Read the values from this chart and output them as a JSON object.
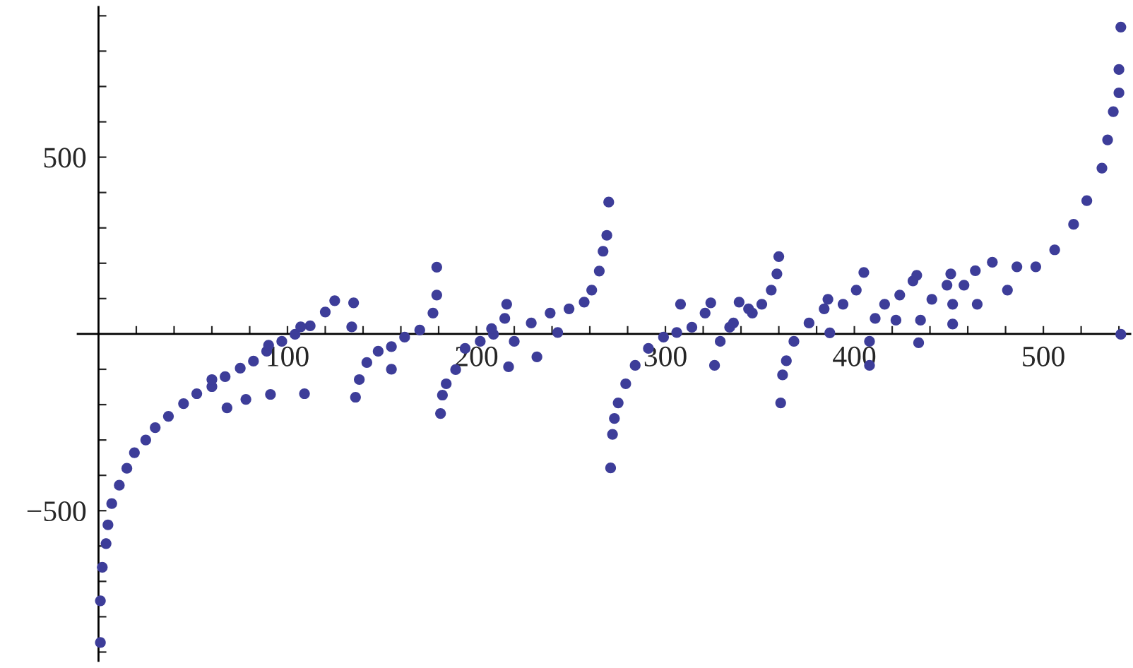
{
  "chart_data": {
    "type": "scatter",
    "marker": "circle",
    "xlim": [
      -11,
      546
    ],
    "ylim": [
      -925,
      925
    ],
    "xticks": [
      {
        "value": 20,
        "label": null
      },
      {
        "value": 40,
        "label": null
      },
      {
        "value": 60,
        "label": null
      },
      {
        "value": 80,
        "label": null
      },
      100,
      {
        "value": 120,
        "label": null
      },
      {
        "value": 140,
        "label": null
      },
      {
        "value": 160,
        "label": null
      },
      {
        "value": 180,
        "label": null
      },
      200,
      {
        "value": 220,
        "label": null
      },
      {
        "value": 240,
        "label": null
      },
      {
        "value": 260,
        "label": null
      },
      {
        "value": 280,
        "label": null
      },
      300,
      {
        "value": 320,
        "label": null
      },
      {
        "value": 340,
        "label": null
      },
      {
        "value": 360,
        "label": null
      },
      {
        "value": 380,
        "label": null
      },
      400,
      {
        "value": 420,
        "label": null
      },
      {
        "value": 440,
        "label": null
      },
      {
        "value": 460,
        "label": null
      },
      {
        "value": 480,
        "label": null
      },
      500,
      {
        "value": 520,
        "label": null
      },
      {
        "value": 540,
        "label": null
      }
    ],
    "yticks": [
      {
        "value": -900,
        "label": null
      },
      {
        "value": -800,
        "label": null
      },
      {
        "value": -700,
        "label": null
      },
      {
        "value": -600,
        "label": null
      },
      {
        "value": -500,
        "label": "−500"
      },
      {
        "value": -400,
        "label": null
      },
      {
        "value": -300,
        "label": null
      },
      {
        "value": -200,
        "label": null
      },
      {
        "value": -100,
        "label": null
      },
      {
        "value": 100,
        "label": null
      },
      {
        "value": 200,
        "label": null
      },
      {
        "value": 300,
        "label": null
      },
      {
        "value": 400,
        "label": null
      },
      500,
      {
        "value": 600,
        "label": null
      },
      {
        "value": 700,
        "label": null
      },
      {
        "value": 800,
        "label": null
      },
      {
        "value": 900,
        "label": null
      }
    ],
    "series": [
      {
        "color": "#3d3d99",
        "x": [
          1,
          1,
          2,
          4,
          5,
          7,
          11,
          15,
          19,
          25,
          30,
          37,
          45,
          52,
          60,
          67,
          75,
          82,
          89,
          97,
          104,
          112,
          120,
          125,
          60,
          90,
          107,
          109,
          91,
          78,
          68,
          135,
          134,
          136,
          138,
          142,
          148,
          155,
          162,
          170,
          177,
          179,
          179,
          155,
          181,
          182,
          184,
          189,
          194,
          202,
          209,
          215,
          216,
          217,
          220,
          229,
          239,
          249,
          257,
          261,
          265,
          267,
          269,
          270,
          232,
          243,
          208,
          271,
          272,
          273,
          275,
          279,
          284,
          291,
          299,
          306,
          314,
          321,
          324,
          326,
          329,
          334,
          339,
          346,
          308,
          336,
          344,
          351,
          356,
          359,
          360,
          361,
          362,
          364,
          368,
          376,
          384,
          394,
          401,
          405,
          387,
          386,
          408,
          408,
          411,
          416,
          424,
          431,
          433,
          422,
          434,
          435,
          441,
          449,
          451,
          452,
          452,
          458,
          464,
          465,
          473,
          481,
          486,
          496,
          506,
          516,
          523,
          531,
          534,
          537,
          540,
          540,
          541,
          541
        ],
        "values": [
          -873,
          -755,
          -660,
          -593,
          -540,
          -480,
          -428,
          -380,
          -336,
          -300,
          -265,
          -233,
          -197,
          -169,
          -149,
          -121,
          -97,
          -77,
          -49,
          -21,
          -1,
          23,
          62,
          94,
          -129,
          -32,
          20,
          -169,
          -171,
          -185,
          -209,
          88,
          20,
          -179,
          -129,
          -81,
          -49,
          -36,
          -9,
          11,
          59,
          110,
          189,
          -100,
          -225,
          -173,
          -141,
          -101,
          -41,
          -21,
          -1,
          44,
          84,
          -93,
          -21,
          31,
          59,
          71,
          90,
          124,
          178,
          234,
          279,
          373,
          -65,
          4,
          15,
          -379,
          -284,
          -239,
          -195,
          -141,
          -89,
          -41,
          -9,
          4,
          19,
          59,
          88,
          -89,
          -21,
          19,
          90,
          59,
          84,
          31,
          71,
          84,
          124,
          170,
          219,
          -195,
          -116,
          -76,
          -21,
          31,
          71,
          84,
          124,
          174,
          3,
          98,
          -89,
          -21,
          44,
          84,
          110,
          150,
          166,
          39,
          -25,
          39,
          98,
          138,
          170,
          28,
          84,
          138,
          179,
          84,
          203,
          124,
          190,
          190,
          238,
          310,
          377,
          469,
          549,
          629,
          682,
          748,
          868,
          -1
        ]
      }
    ]
  }
}
